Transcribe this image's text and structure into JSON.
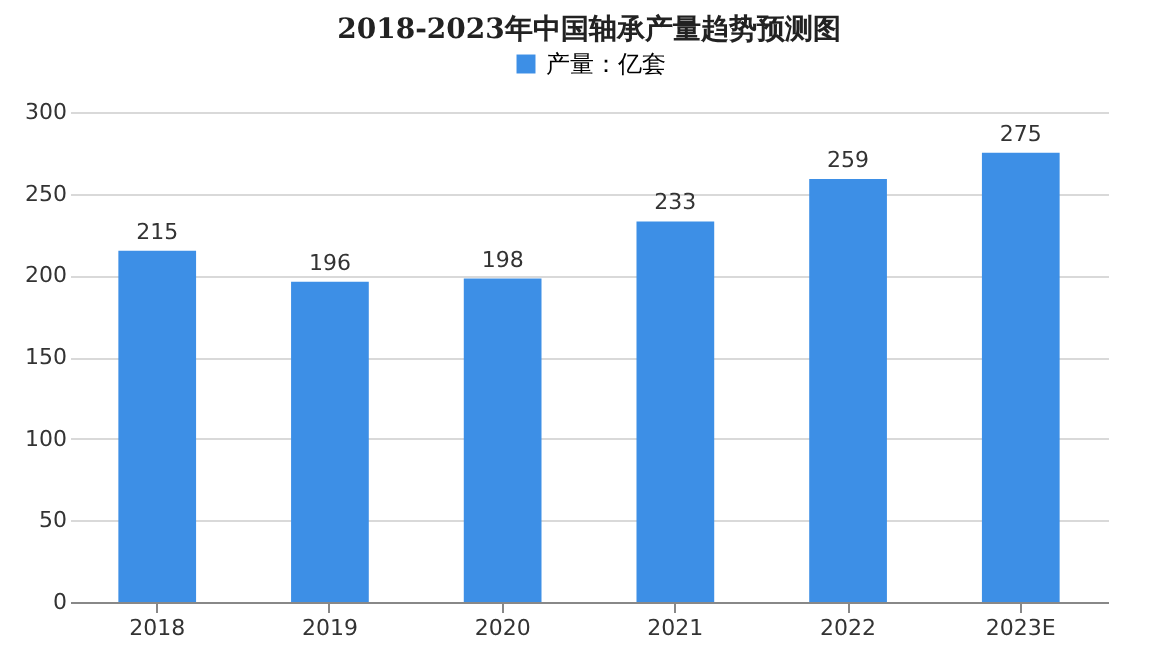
{
  "chart_data": {
    "type": "bar",
    "title": "2018-2023年中国轴承产量趋势预测图",
    "categories": [
      "2018",
      "2019",
      "2020",
      "2021",
      "2022",
      "2023E"
    ],
    "series": [
      {
        "name": "产量：亿套",
        "color": "#3d8fe6",
        "values": [
          215,
          196,
          198,
          233,
          259,
          275
        ]
      }
    ],
    "ylim": [
      0,
      300
    ],
    "yticks": [
      0,
      50,
      100,
      150,
      200,
      250,
      300
    ],
    "grid": "y",
    "legend": "top",
    "data_labels": true
  }
}
